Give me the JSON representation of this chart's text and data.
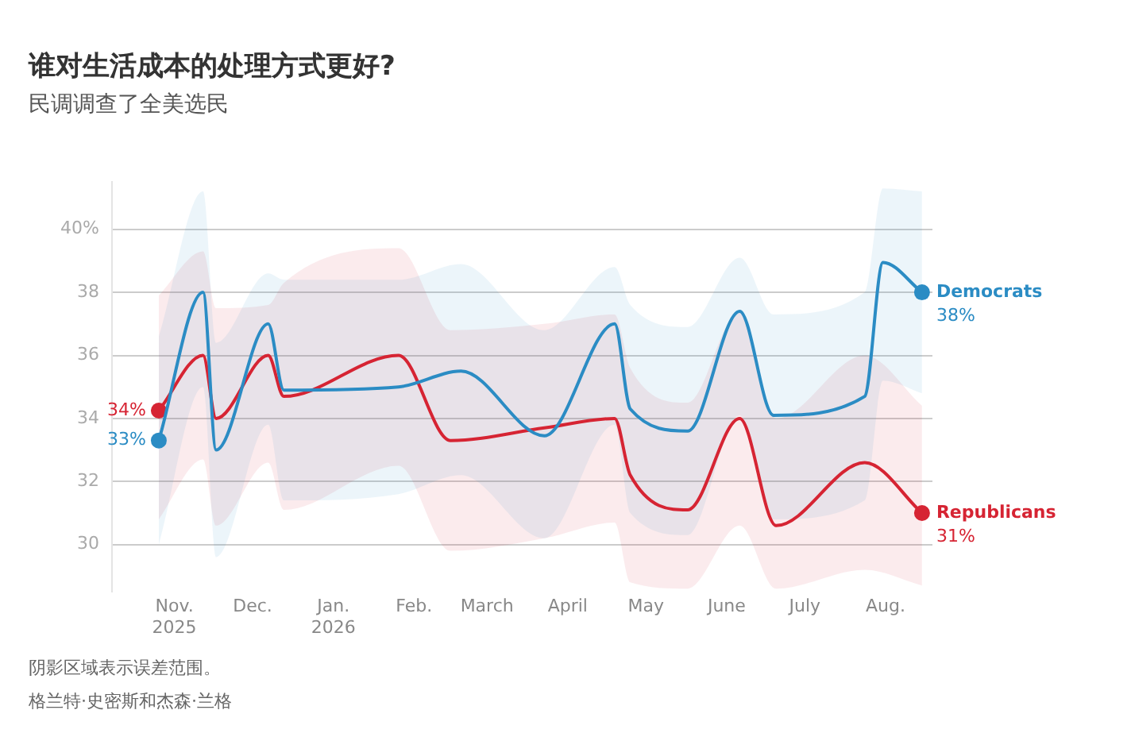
{
  "chart_data": {
    "type": "line",
    "title": "谁对生活成本的处理方式更好?",
    "subtitle": "民调调查了全美选民",
    "annotations": [
      "阴影区域表示误差范围。",
      "格兰特·史密斯和杰森·兰格"
    ],
    "series": [
      {
        "name": "Democrats",
        "color": "#2b8cc4",
        "x": [
          "2025-10-26",
          "2025-11-12",
          "2025-11-17",
          "2025-12-07",
          "2025-12-13",
          "2026-01-26",
          "2026-02-19",
          "2026-03-23",
          "2026-04-19",
          "2026-04-25",
          "2026-05-17",
          "2026-06-06",
          "2026-06-19",
          "2026-07-24",
          "2026-07-31",
          "2026-08-15"
        ],
        "values": [
          33.3,
          38.0,
          33.0,
          37.0,
          34.9,
          35.0,
          35.5,
          33.45,
          37.0,
          34.3,
          33.6,
          37.4,
          34.1,
          34.7,
          38.95,
          38.0
        ],
        "lower": [
          30.0,
          35.0,
          29.6,
          33.8,
          31.4,
          31.6,
          32.2,
          30.2,
          33.8,
          31.0,
          30.3,
          34.1,
          30.8,
          31.4,
          35.2,
          34.8
        ],
        "upper": [
          36.6,
          41.2,
          36.4,
          38.6,
          38.4,
          38.4,
          38.9,
          36.8,
          38.8,
          37.6,
          36.9,
          39.1,
          37.3,
          38.0,
          41.3,
          41.2
        ],
        "value_labels": [
          "33%",
          null,
          null,
          null,
          null,
          null,
          null,
          null,
          null,
          null,
          null,
          null,
          null,
          null,
          null,
          "38%"
        ]
      },
      {
        "name": "Republicans",
        "color": "#d62433",
        "x": [
          "2025-10-26",
          "2025-11-12",
          "2025-11-17",
          "2025-12-07",
          "2025-12-13",
          "2026-01-26",
          "2026-02-15",
          "2026-03-23",
          "2026-04-19",
          "2026-04-25",
          "2026-05-17",
          "2026-06-06",
          "2026-06-20",
          "2026-07-24",
          "2026-08-15"
        ],
        "values": [
          34.25,
          36.0,
          34.0,
          36.0,
          34.7,
          36.0,
          33.3,
          33.7,
          34.0,
          32.2,
          31.1,
          34.0,
          30.6,
          32.6,
          31.0
        ],
        "lower": [
          30.8,
          32.7,
          30.6,
          32.6,
          31.1,
          32.5,
          29.8,
          30.2,
          30.7,
          28.8,
          28.6,
          30.6,
          28.6,
          29.2,
          28.7
        ],
        "upper": [
          37.9,
          39.3,
          37.5,
          37.6,
          38.3,
          39.4,
          36.8,
          37.0,
          37.3,
          35.6,
          34.5,
          37.4,
          34.0,
          36.0,
          34.4
        ],
        "value_labels": [
          "34%",
          null,
          null,
          null,
          null,
          null,
          null,
          null,
          null,
          null,
          null,
          null,
          null,
          null,
          "31%"
        ]
      }
    ],
    "xlim": [
      "2025-10-08",
      "2026-08-19"
    ],
    "xticks": [
      {
        "value": "2025-11-01",
        "label": "Nov.\n2025"
      },
      {
        "value": "2025-12-01",
        "label": "Dec."
      },
      {
        "value": "2026-01-01",
        "label": "Jan.\n2026"
      },
      {
        "value": "2026-02-01",
        "label": "Feb."
      },
      {
        "value": "2026-03-01",
        "label": "March"
      },
      {
        "value": "2026-04-01",
        "label": "April"
      },
      {
        "value": "2026-05-01",
        "label": "May"
      },
      {
        "value": "2026-06-01",
        "label": "June"
      },
      {
        "value": "2026-07-01",
        "label": "July"
      },
      {
        "value": "2026-08-01",
        "label": "Aug."
      }
    ],
    "ylim": [
      28.5,
      41.5
    ],
    "yticks": [
      30,
      32,
      34,
      36,
      38,
      {
        "value": 40,
        "label": "40%"
      }
    ],
    "grid": "y",
    "legend": false
  }
}
